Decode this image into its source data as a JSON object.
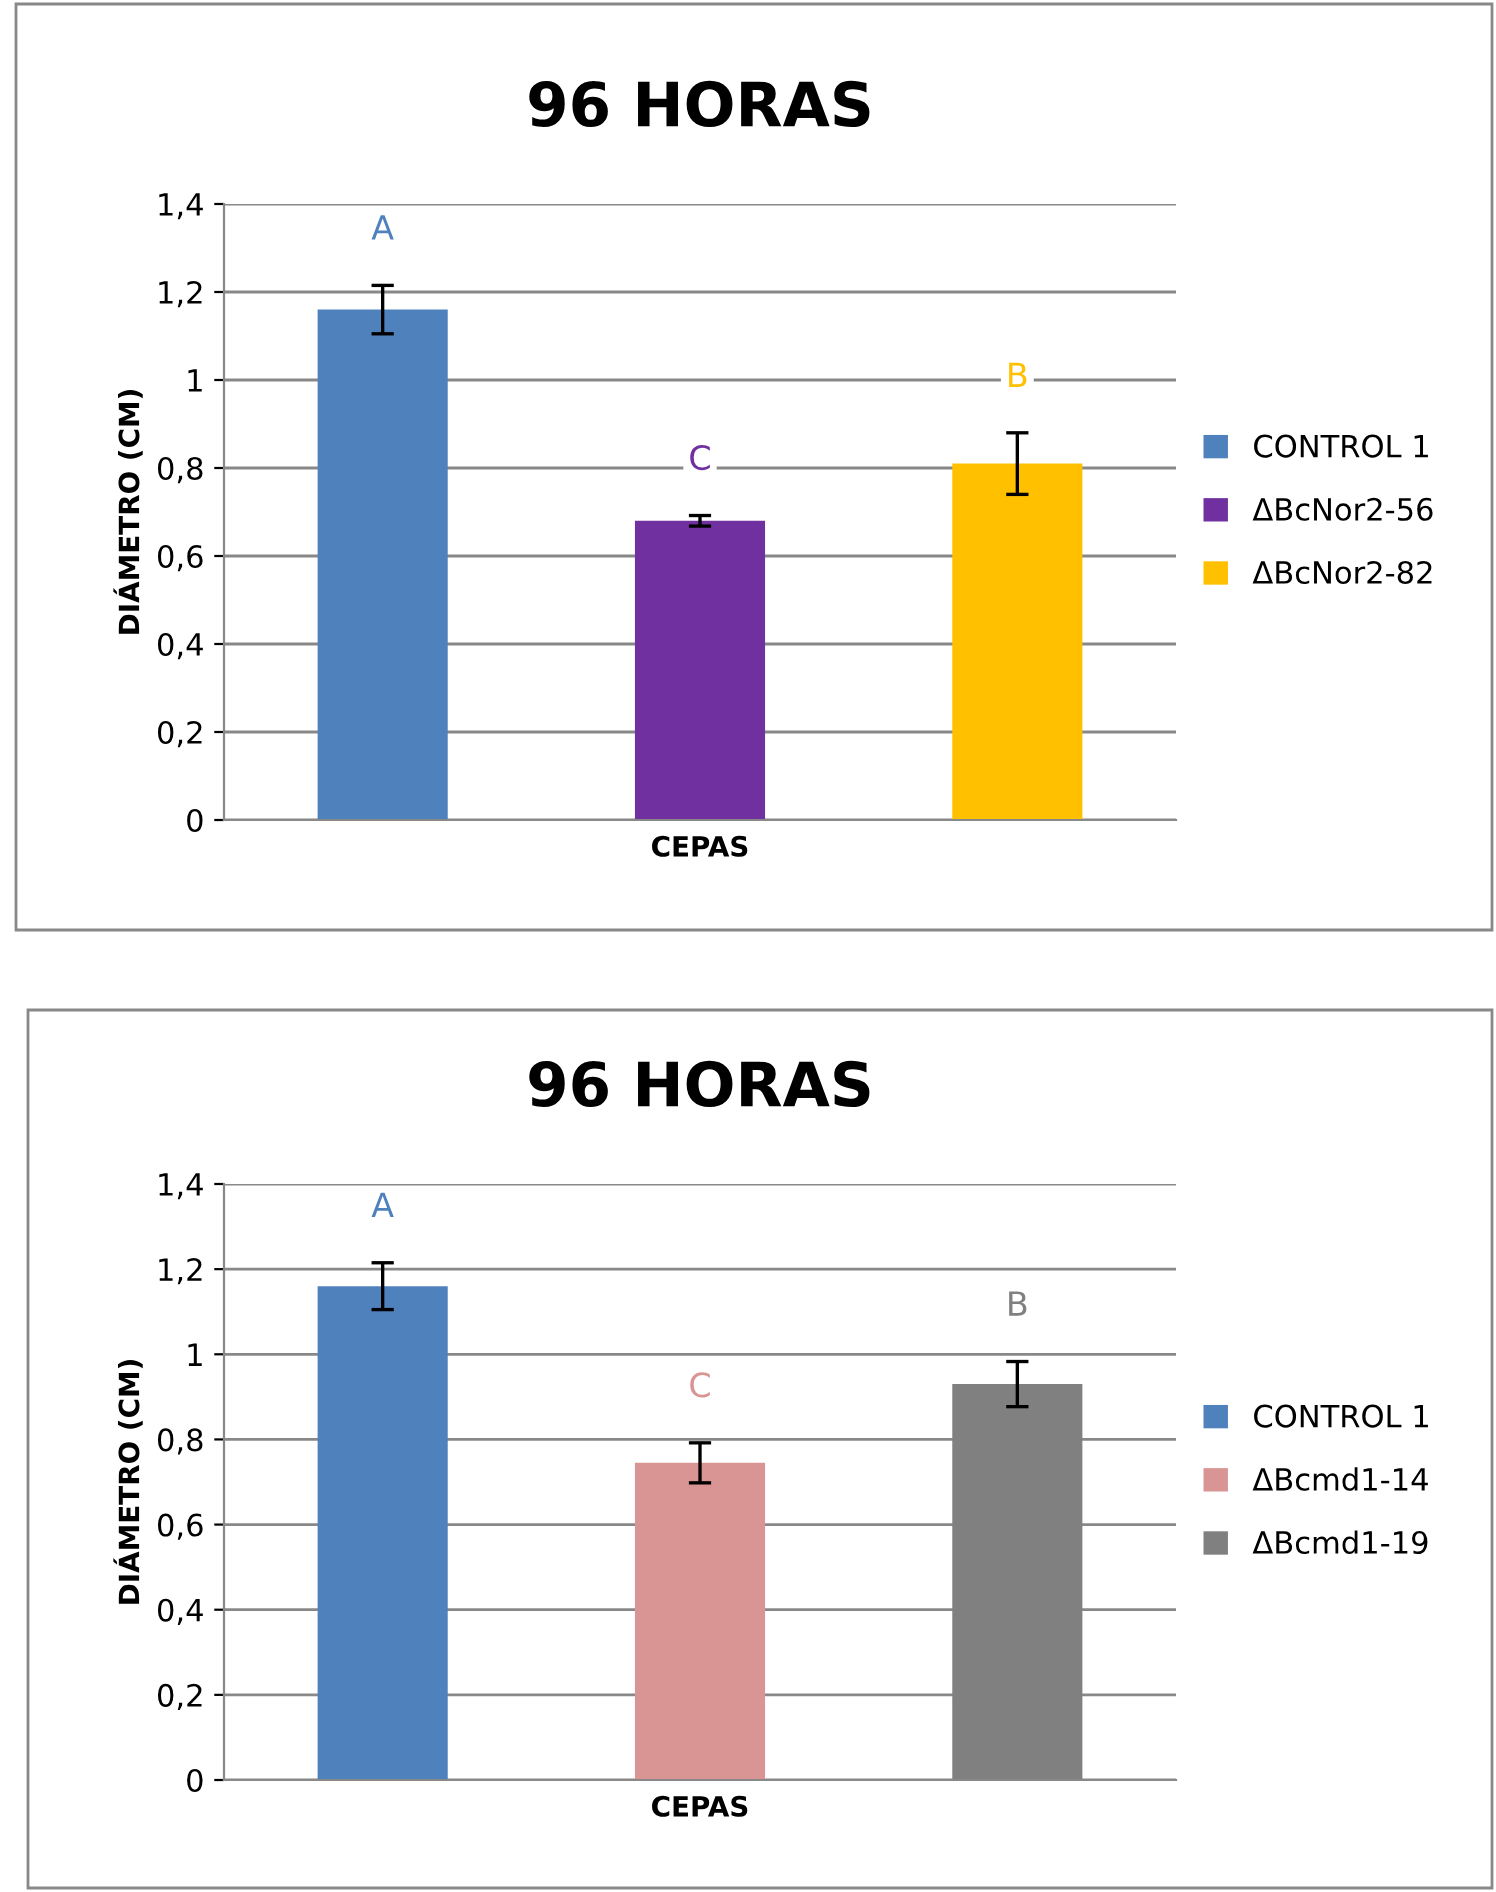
{
  "chart_data": [
    {
      "type": "bar",
      "title": "96 HORAS",
      "xlabel": "CEPAS",
      "ylabel": "DIÁMETRO (CM)",
      "categories": [
        null
      ],
      "series": [
        {
          "name": "CONTROL 1",
          "color": "#4f81bd",
          "values": [
            1.16
          ],
          "errors": [
            0.055
          ]
        },
        {
          "name": "ΔBcNor2-56",
          "color": "#7030a0",
          "values": [
            0.68
          ],
          "errors": [
            0.012
          ]
        },
        {
          "name": "ΔBcNor2-82",
          "color": "#ffc000",
          "values": [
            0.81
          ],
          "errors": [
            0.07
          ]
        }
      ],
      "annotations": [
        "A",
        "C",
        "B"
      ],
      "ylim": [
        0,
        1.4
      ],
      "yticks": [
        {
          "value": 0,
          "label": "0"
        },
        {
          "value": 0.2,
          "label": "0,2"
        },
        {
          "value": 0.4,
          "label": "0,4"
        },
        {
          "value": 0.6,
          "label": "0,6"
        },
        {
          "value": 0.8,
          "label": "0,8"
        },
        {
          "value": 1,
          "label": "1"
        },
        {
          "value": 1.2,
          "label": "1,2"
        },
        {
          "value": 1.4,
          "label": "1,4"
        }
      ],
      "grid": "y",
      "legend": "right"
    },
    {
      "type": "bar",
      "title": "96 HORAS",
      "xlabel": "CEPAS",
      "ylabel": "DIÁMETRO (CM)",
      "categories": [
        null
      ],
      "series": [
        {
          "name": "CONTROL 1",
          "color": "#4f81bd",
          "values": [
            1.16
          ],
          "errors": [
            0.055
          ]
        },
        {
          "name": "ΔBcmd1-14",
          "color": "#d99594",
          "values": [
            0.745
          ],
          "errors": [
            0.047
          ]
        },
        {
          "name": "ΔBcmd1-19",
          "color": "#808080",
          "values": [
            0.93
          ],
          "errors": [
            0.053
          ]
        }
      ],
      "annotations": [
        "A",
        "C",
        "B"
      ],
      "ylim": [
        0,
        1.4
      ],
      "yticks": [
        {
          "value": 0,
          "label": "0"
        },
        {
          "value": 0.2,
          "label": "0,2"
        },
        {
          "value": 0.4,
          "label": "0,4"
        },
        {
          "value": 0.6,
          "label": "0,6"
        },
        {
          "value": 0.8,
          "label": "0,8"
        },
        {
          "value": 1,
          "label": "1"
        },
        {
          "value": 1.2,
          "label": "1,2"
        },
        {
          "value": 1.4,
          "label": "1,4"
        }
      ],
      "grid": "y",
      "legend": "right"
    }
  ]
}
